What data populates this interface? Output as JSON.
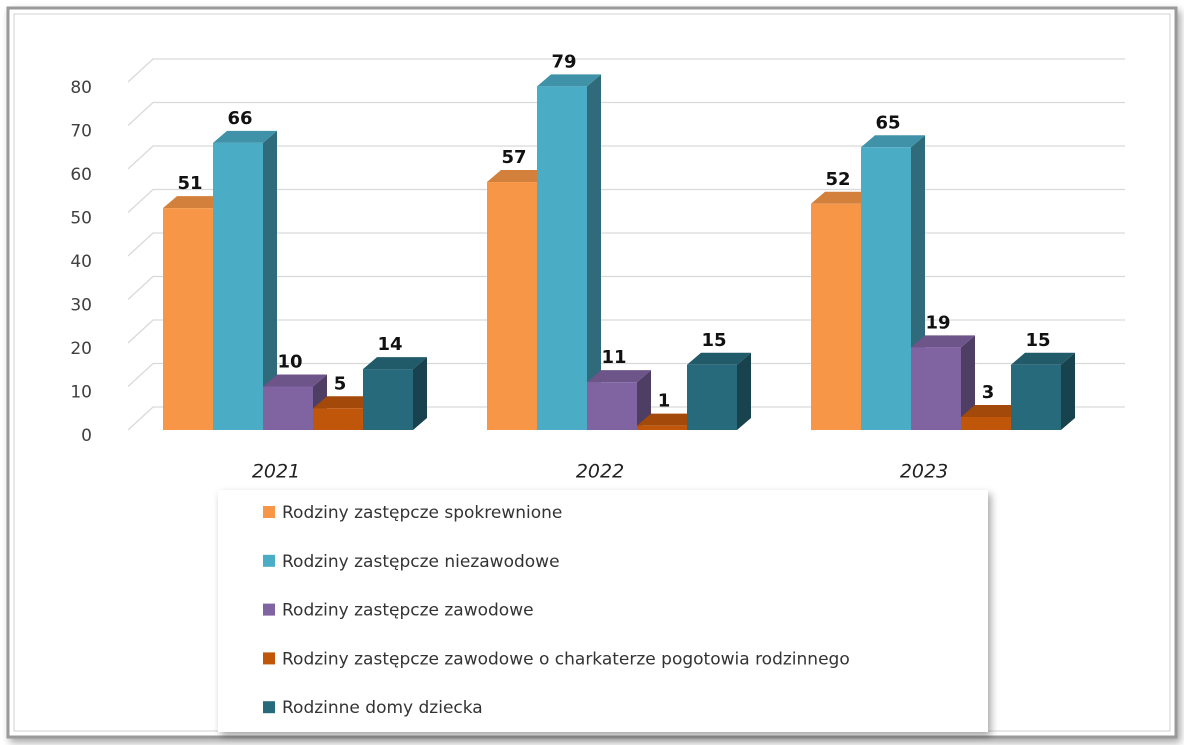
{
  "chart_data": {
    "type": "bar3d",
    "categories": [
      "2021",
      "2022",
      "2023"
    ],
    "series": [
      {
        "name": "Rodziny zastępcze spokrewnione",
        "color": "#F79646",
        "values": [
          51,
          57,
          52
        ]
      },
      {
        "name": "Rodziny zastępcze niezawodowe",
        "color": "#4BACC6",
        "values": [
          66,
          79,
          65
        ]
      },
      {
        "name": "Rodziny zastępcze zawodowe",
        "color": "#8064A2",
        "values": [
          10,
          11,
          19
        ]
      },
      {
        "name": "Rodziny zastępcze zawodowe o charkaterze pogotowia rodzinnego",
        "color": "#C0560A",
        "values": [
          5,
          1,
          3
        ]
      },
      {
        "name": "Rodzinne domy dziecka",
        "color": "#276A7C",
        "values": [
          14,
          15,
          15
        ]
      }
    ],
    "ylim": [
      0,
      80
    ],
    "yticks": [
      0,
      10,
      20,
      30,
      40,
      50,
      60,
      70,
      80
    ],
    "grid": true,
    "legend": "bottom"
  }
}
